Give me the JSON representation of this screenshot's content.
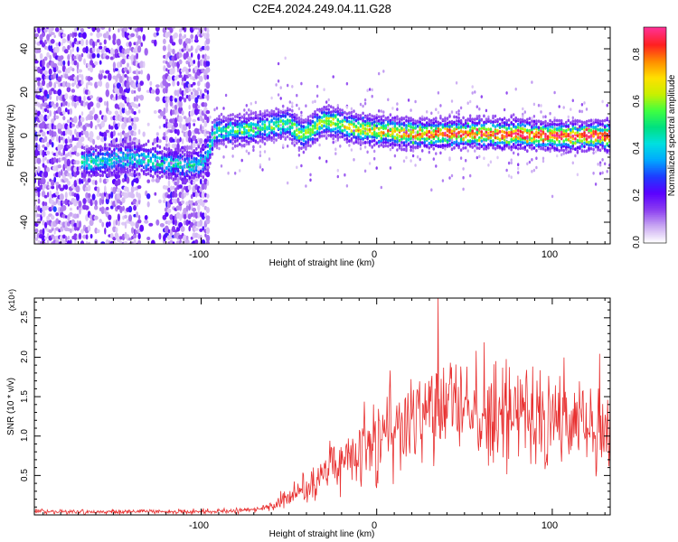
{
  "title": "C2E4.2024.249.04.11.G28",
  "chart_data": [
    {
      "type": "heatmap",
      "title": "C2E4.2024.249.04.11.G28",
      "xlabel": "Height of straight line (km)",
      "ylabel": "Frequency (Hz)",
      "xlim": [
        -195,
        133
      ],
      "ylim": [
        -50,
        50
      ],
      "x_ticks": [
        -100,
        0,
        100
      ],
      "y_ticks": [
        -40,
        -20,
        0,
        20,
        40
      ],
      "x_tick_labels": [
        "-100",
        "0",
        "100"
      ],
      "y_tick_labels": [
        "-40",
        "-20",
        "0",
        "20",
        "40"
      ],
      "colorbar": {
        "label": "Normalized spectral amplitude",
        "range": [
          0.0,
          0.9
        ],
        "ticks": [
          0.0,
          0.2,
          0.4,
          0.6,
          0.8
        ],
        "tick_labels": [
          "0.0",
          "0.2",
          "0.4",
          "0.6",
          "0.8"
        ],
        "colormap": [
          "#ffffff",
          "#c9a8f2",
          "#8a3df0",
          "#5a00ff",
          "#1e3cff",
          "#00a8ff",
          "#00e0e0",
          "#00e080",
          "#40ff40",
          "#c8f000",
          "#ffe000",
          "#ff8c00",
          "#ff2020",
          "#ff3090"
        ]
      },
      "ridge_frequency_hz": [
        {
          "x": -160,
          "f": -12
        },
        {
          "x": -140,
          "f": -10
        },
        {
          "x": -125,
          "f": -12
        },
        {
          "x": -108,
          "f": -14
        },
        {
          "x": -98,
          "f": -12
        },
        {
          "x": -92,
          "f": 2
        },
        {
          "x": -70,
          "f": 3
        },
        {
          "x": -50,
          "f": 6
        },
        {
          "x": -42,
          "f": 0
        },
        {
          "x": -30,
          "f": 7
        },
        {
          "x": -10,
          "f": 3
        },
        {
          "x": 20,
          "f": 1
        },
        {
          "x": 60,
          "f": 1
        },
        {
          "x": 100,
          "f": 0
        },
        {
          "x": 133,
          "f": 0
        }
      ]
    },
    {
      "type": "line",
      "xlabel": "Height of straight line (km)",
      "ylabel": "SNR (10 * v/v)",
      "y_multiplier": "(x10⁴)",
      "xlim": [
        -195,
        133
      ],
      "ylim": [
        0,
        2.75
      ],
      "x_ticks": [
        -100,
        0,
        100
      ],
      "y_ticks": [
        0.5,
        1.0,
        1.5,
        2.0,
        2.5
      ],
      "x_tick_labels": [
        "-100",
        "0",
        "100"
      ],
      "y_tick_labels": [
        "0.5",
        "1.0",
        "1.5",
        "2.0",
        "2.5"
      ],
      "color": "#e83030",
      "series": [
        {
          "name": "SNR",
          "envelope_mean": [
            {
              "x": -195,
              "y": 0.04
            },
            {
              "x": -120,
              "y": 0.04
            },
            {
              "x": -80,
              "y": 0.05
            },
            {
              "x": -65,
              "y": 0.08
            },
            {
              "x": -50,
              "y": 0.2
            },
            {
              "x": -35,
              "y": 0.4
            },
            {
              "x": -25,
              "y": 0.6
            },
            {
              "x": -15,
              "y": 0.8
            },
            {
              "x": 0,
              "y": 1.0
            },
            {
              "x": 15,
              "y": 1.15
            },
            {
              "x": 30,
              "y": 1.25
            },
            {
              "x": 50,
              "y": 1.3
            },
            {
              "x": 80,
              "y": 1.25
            },
            {
              "x": 110,
              "y": 1.2
            },
            {
              "x": 133,
              "y": 1.2
            }
          ],
          "peak": {
            "x": 35,
            "y": 2.75
          }
        }
      ]
    }
  ]
}
